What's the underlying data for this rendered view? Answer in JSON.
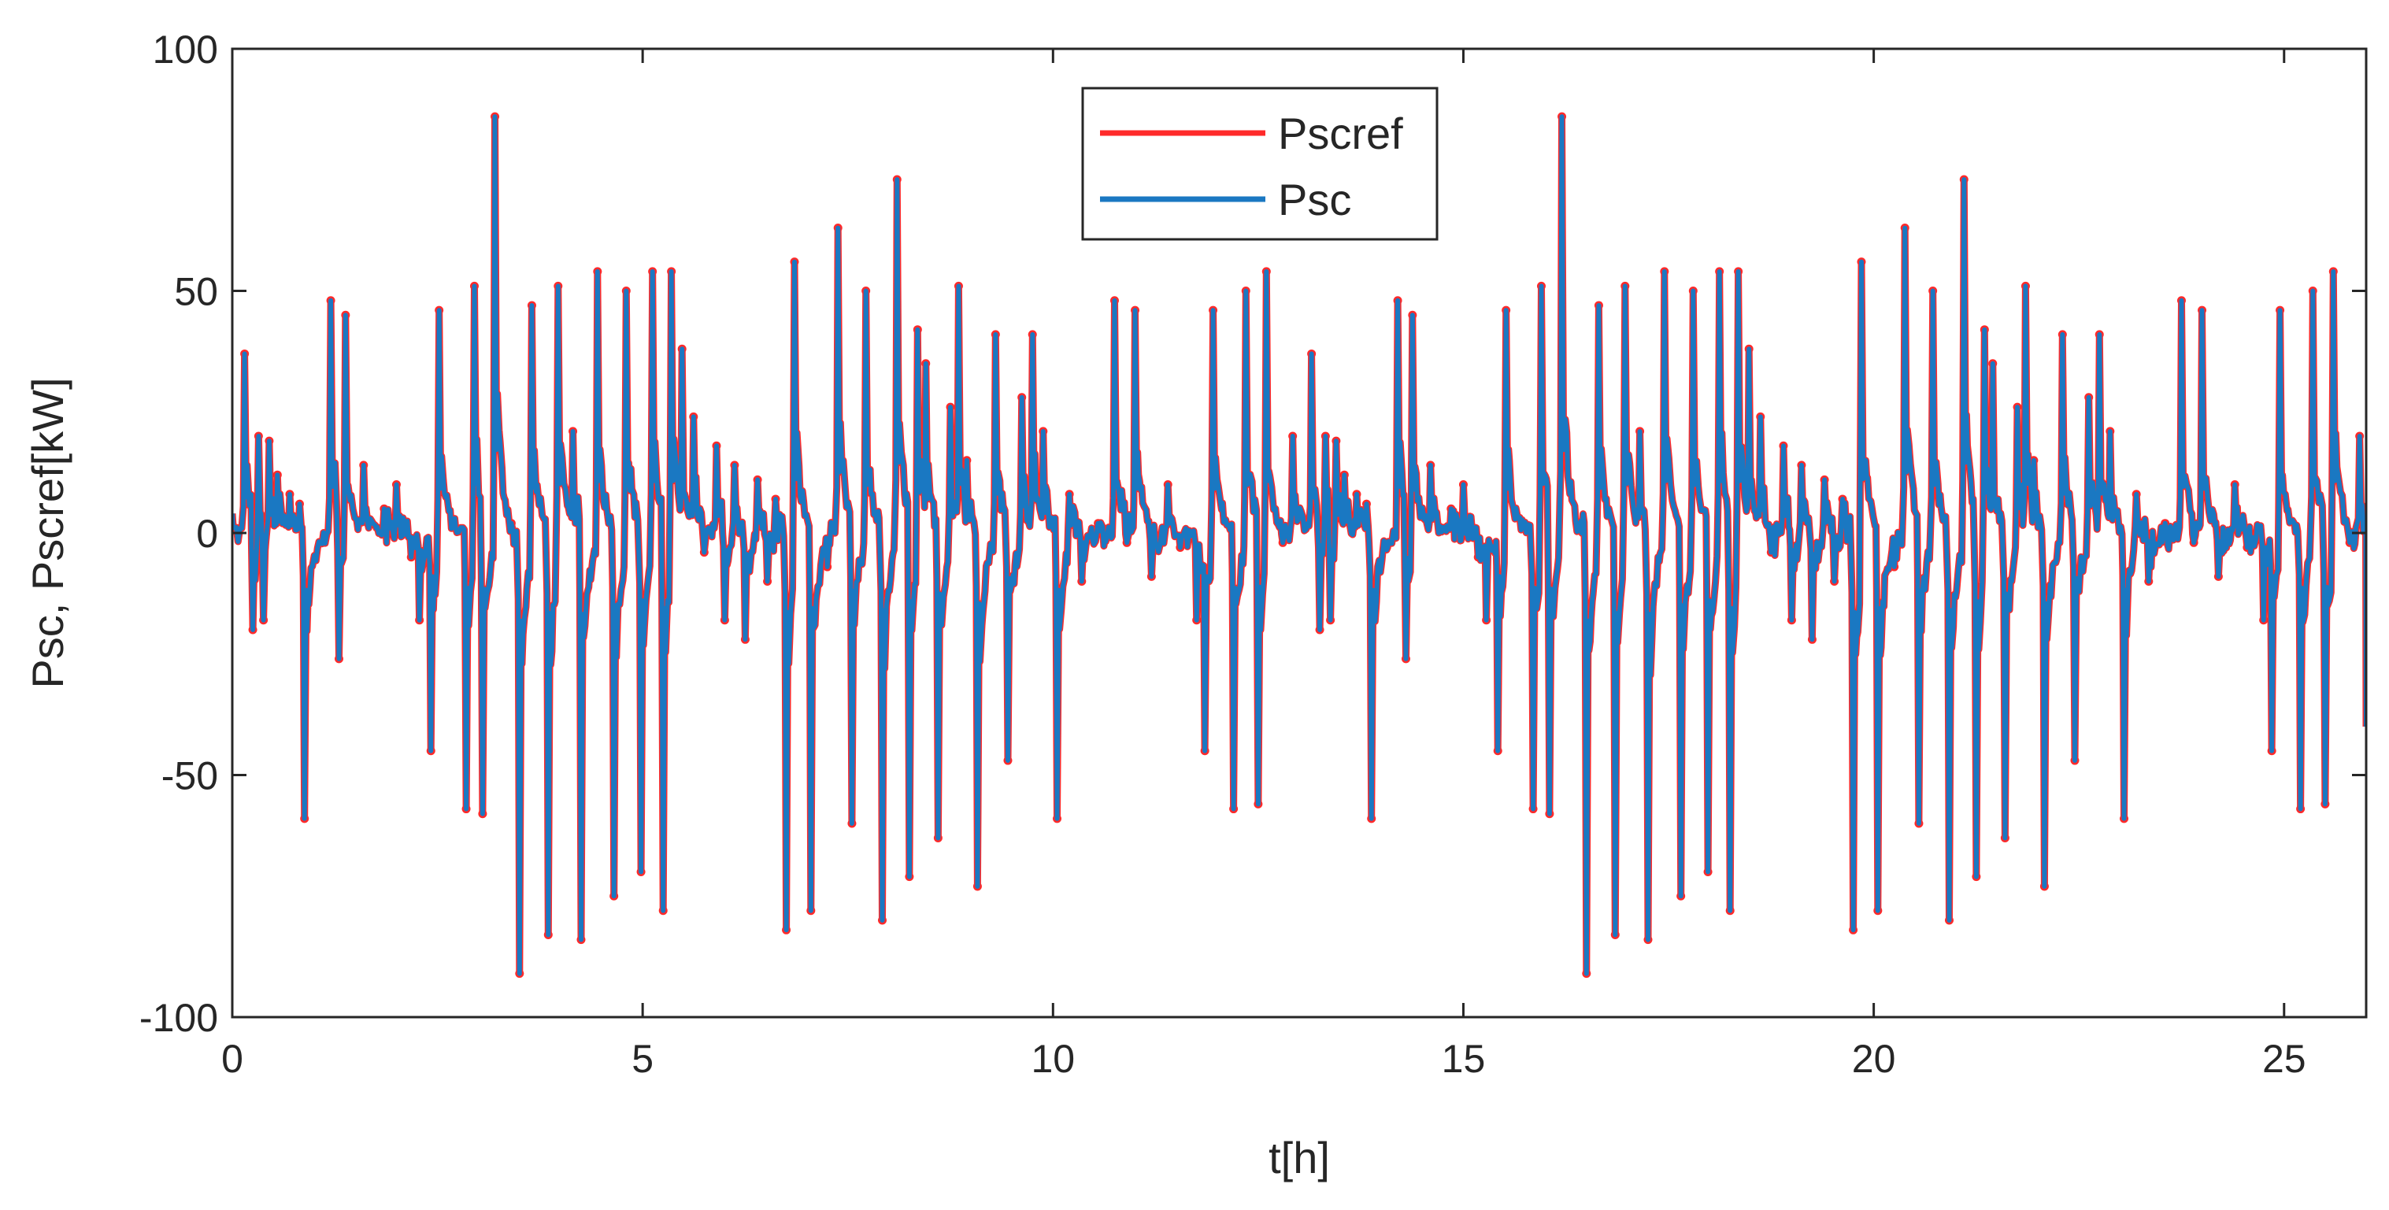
{
  "chart_data": {
    "type": "line",
    "xlabel": "t[h]",
    "ylabel": "Psc, Pscref[kW]",
    "xlim": [
      0,
      26
    ],
    "ylim": [
      -100,
      100
    ],
    "x_ticks": [
      0,
      5,
      10,
      15,
      20,
      25
    ],
    "x_tick_labels": [
      "0",
      "5",
      "10",
      "15",
      "20",
      "25"
    ],
    "y_ticks": [
      -100,
      -50,
      0,
      50,
      100
    ],
    "y_tick_labels": [
      "-100",
      "-50",
      "0",
      "50",
      "100"
    ],
    "grid": false,
    "legend_position": "top-center",
    "period_repeat_at": 13.0,
    "series": [
      {
        "name": "Pscref",
        "color": "#ff2a2a",
        "style": "markers-and-line"
      },
      {
        "name": "Psc",
        "color": "#1a78c2",
        "style": "line"
      }
    ],
    "events": [
      {
        "t": 0.15,
        "v": 37
      },
      {
        "t": 0.25,
        "v": -20
      },
      {
        "t": 0.32,
        "v": 20
      },
      {
        "t": 0.38,
        "v": -18
      },
      {
        "t": 0.45,
        "v": 19
      },
      {
        "t": 0.55,
        "v": 12
      },
      {
        "t": 0.7,
        "v": 8
      },
      {
        "t": 0.82,
        "v": 6
      },
      {
        "t": 0.88,
        "v": -59
      },
      {
        "t": 1.2,
        "v": 48
      },
      {
        "t": 1.3,
        "v": -26
      },
      {
        "t": 1.38,
        "v": 45
      },
      {
        "t": 1.6,
        "v": 14
      },
      {
        "t": 1.85,
        "v": 5
      },
      {
        "t": 2.0,
        "v": 10
      },
      {
        "t": 2.18,
        "v": -5
      },
      {
        "t": 2.28,
        "v": -18
      },
      {
        "t": 2.42,
        "v": -45
      },
      {
        "t": 2.52,
        "v": 46
      },
      {
        "t": 2.85,
        "v": -57
      },
      {
        "t": 2.95,
        "v": 51
      },
      {
        "t": 3.05,
        "v": -58
      },
      {
        "t": 3.2,
        "v": 86
      },
      {
        "t": 3.4,
        "v": 2
      },
      {
        "t": 3.5,
        "v": -91
      },
      {
        "t": 3.65,
        "v": 47
      },
      {
        "t": 3.85,
        "v": -83
      },
      {
        "t": 3.97,
        "v": 51
      },
      {
        "t": 4.15,
        "v": 21
      },
      {
        "t": 4.25,
        "v": -84
      },
      {
        "t": 4.45,
        "v": 54
      },
      {
        "t": 4.65,
        "v": -75
      },
      {
        "t": 4.8,
        "v": 50
      },
      {
        "t": 4.98,
        "v": -70
      },
      {
        "t": 5.12,
        "v": 54
      },
      {
        "t": 5.25,
        "v": -78
      },
      {
        "t": 5.35,
        "v": 54
      },
      {
        "t": 5.48,
        "v": 38
      },
      {
        "t": 5.62,
        "v": 24
      },
      {
        "t": 5.75,
        "v": -4
      },
      {
        "t": 5.9,
        "v": 18
      },
      {
        "t": 6.0,
        "v": -18
      },
      {
        "t": 6.12,
        "v": 14
      },
      {
        "t": 6.25,
        "v": -22
      },
      {
        "t": 6.4,
        "v": 11
      },
      {
        "t": 6.52,
        "v": -10
      },
      {
        "t": 6.62,
        "v": 7
      },
      {
        "t": 6.75,
        "v": -82
      },
      {
        "t": 6.85,
        "v": 56
      },
      {
        "t": 7.05,
        "v": -78
      },
      {
        "t": 7.25,
        "v": -7
      },
      {
        "t": 7.38,
        "v": 63
      },
      {
        "t": 7.55,
        "v": -60
      },
      {
        "t": 7.72,
        "v": 50
      },
      {
        "t": 7.92,
        "v": -80
      },
      {
        "t": 8.1,
        "v": 73
      },
      {
        "t": 8.25,
        "v": -71
      },
      {
        "t": 8.35,
        "v": 42
      },
      {
        "t": 8.45,
        "v": 35
      },
      {
        "t": 8.6,
        "v": -63
      },
      {
        "t": 8.75,
        "v": 26
      },
      {
        "t": 8.85,
        "v": 51
      },
      {
        "t": 8.95,
        "v": 15
      },
      {
        "t": 9.08,
        "v": -73
      },
      {
        "t": 9.3,
        "v": 41
      },
      {
        "t": 9.45,
        "v": -47
      },
      {
        "t": 9.62,
        "v": 28
      },
      {
        "t": 9.75,
        "v": 41
      },
      {
        "t": 9.88,
        "v": 21
      },
      {
        "t": 10.05,
        "v": -59
      },
      {
        "t": 10.2,
        "v": 8
      },
      {
        "t": 10.35,
        "v": -10
      },
      {
        "t": 10.55,
        "v": 2
      },
      {
        "t": 10.75,
        "v": 48
      },
      {
        "t": 10.9,
        "v": -2
      },
      {
        "t": 11.0,
        "v": 46
      },
      {
        "t": 11.2,
        "v": -9
      },
      {
        "t": 11.4,
        "v": 10
      },
      {
        "t": 11.55,
        "v": -3
      },
      {
        "t": 11.75,
        "v": -18
      },
      {
        "t": 11.85,
        "v": -45
      },
      {
        "t": 11.95,
        "v": 46
      },
      {
        "t": 12.2,
        "v": -57
      },
      {
        "t": 12.35,
        "v": 50
      },
      {
        "t": 12.5,
        "v": -56
      },
      {
        "t": 12.6,
        "v": 54
      },
      {
        "t": 12.8,
        "v": -2
      },
      {
        "t": 12.92,
        "v": 20
      }
    ],
    "background_noise_kW": 4
  }
}
